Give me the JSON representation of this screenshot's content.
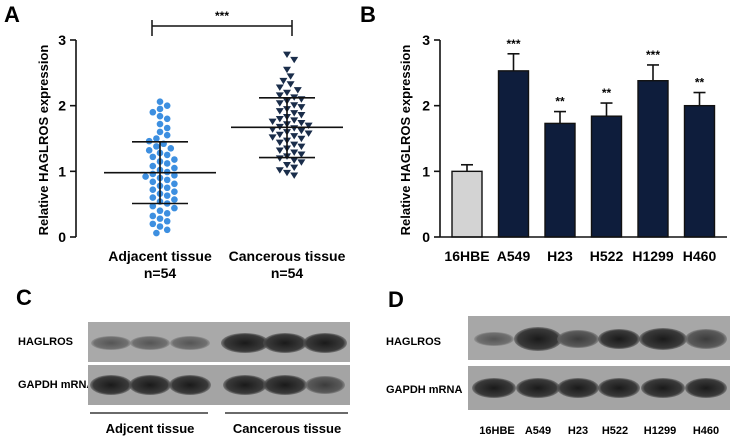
{
  "panels": {
    "a": "A",
    "b": "B",
    "c": "C",
    "d": "D"
  },
  "chart_data": [
    {
      "type": "scatter",
      "panel": "A",
      "ylabel": "Relative HAGLROS expression",
      "ylim": [
        0,
        3
      ],
      "yticks": [
        "0",
        "1",
        "2",
        "3"
      ],
      "significance": "***",
      "groups": [
        {
          "label": "Adjacent tissue",
          "n_label": "n=54",
          "color": "#3d8fe0",
          "marker": "circle",
          "mean": 0.98,
          "sd_low": 0.51,
          "sd_high": 1.45,
          "values": [
            2.06,
            2.0,
            1.95,
            1.9,
            1.84,
            1.8,
            1.72,
            1.66,
            1.6,
            1.55,
            1.5,
            1.46,
            1.42,
            1.38,
            1.35,
            1.32,
            1.28,
            1.25,
            1.22,
            1.18,
            1.15,
            1.12,
            1.08,
            1.05,
            1.02,
            0.99,
            0.96,
            0.94,
            0.92,
            0.9,
            0.87,
            0.84,
            0.81,
            0.78,
            0.75,
            0.72,
            0.69,
            0.66,
            0.63,
            0.6,
            0.57,
            0.54,
            0.51,
            0.47,
            0.44,
            0.4,
            0.36,
            0.32,
            0.28,
            0.24,
            0.2,
            0.16,
            0.11,
            0.06
          ]
        },
        {
          "label": "Cancerous tissue",
          "n_label": "n=54",
          "color": "#1a2d4a",
          "marker": "triangle-down",
          "mean": 1.67,
          "sd_low": 1.21,
          "sd_high": 2.12,
          "values": [
            2.78,
            2.7,
            2.55,
            2.45,
            2.38,
            2.33,
            2.28,
            2.24,
            2.2,
            2.16,
            2.13,
            2.1,
            2.07,
            2.04,
            2.01,
            1.98,
            1.95,
            1.92,
            1.89,
            1.86,
            1.83,
            1.8,
            1.78,
            1.76,
            1.74,
            1.72,
            1.7,
            1.68,
            1.66,
            1.64,
            1.62,
            1.6,
            1.58,
            1.56,
            1.54,
            1.52,
            1.5,
            1.47,
            1.44,
            1.41,
            1.38,
            1.35,
            1.32,
            1.29,
            1.26,
            1.23,
            1.2,
            1.17,
            1.14,
            1.1,
            1.06,
            1.02,
            0.98,
            0.94
          ]
        }
      ]
    },
    {
      "type": "bar",
      "panel": "B",
      "ylabel": "Relative HAGLROS expression",
      "ylim": [
        0,
        3
      ],
      "yticks": [
        "0",
        "1",
        "2",
        "3"
      ],
      "categories": [
        "16HBE",
        "A549",
        "H23",
        "H522",
        "H1299",
        "H460"
      ],
      "values": [
        1.0,
        2.53,
        1.73,
        1.84,
        2.38,
        2.0
      ],
      "errors": [
        0.1,
        0.26,
        0.18,
        0.2,
        0.24,
        0.2
      ],
      "significance": [
        "",
        "***",
        "**",
        "**",
        "***",
        "**"
      ],
      "colors": [
        "#d3d3d3",
        "#0e1d3c",
        "#0e1d3c",
        "#0e1d3c",
        "#0e1d3c",
        "#0e1d3c"
      ]
    }
  ],
  "blots": {
    "c": {
      "rows": [
        "HAGLROS",
        "GAPDH mRNA"
      ],
      "groups": [
        "Adjcent tissue",
        "Cancerous tissue"
      ]
    },
    "d": {
      "rows": [
        "HAGLROS",
        "GAPDH mRNA"
      ],
      "lanes": [
        "16HBE",
        "A549",
        "H23",
        "H522",
        "H1299",
        "H460"
      ]
    }
  }
}
